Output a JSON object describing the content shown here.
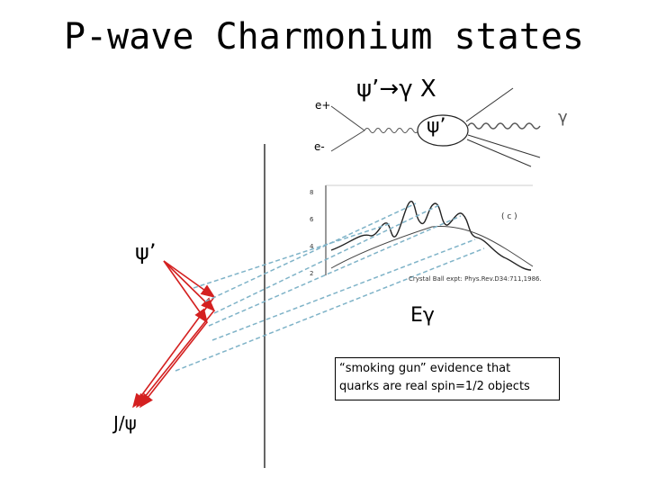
{
  "title": "P-wave Charmonium states",
  "levels": {
    "psi_prime": "ψ’",
    "jpsi": "J/ψ"
  },
  "feynman": {
    "e_plus": "e+",
    "e_minus": "e-",
    "decay": "ψ’→γ X",
    "center": "ψ’",
    "gamma": "γ"
  },
  "plot": {
    "y_ticks": [
      "8",
      "6",
      "4",
      "2"
    ],
    "panel_label": "( c )",
    "credit": "Crystal Ball expt: Phys.Rev.D34:711,1986.",
    "x_label": "Eγ"
  },
  "note": {
    "line1": "“smoking gun” evidence that",
    "line2": "quarks are real spin=1/2 objects"
  },
  "colors": {
    "arrow": "#d42020",
    "dashed": "#7fb3c8",
    "text": "#000000"
  }
}
